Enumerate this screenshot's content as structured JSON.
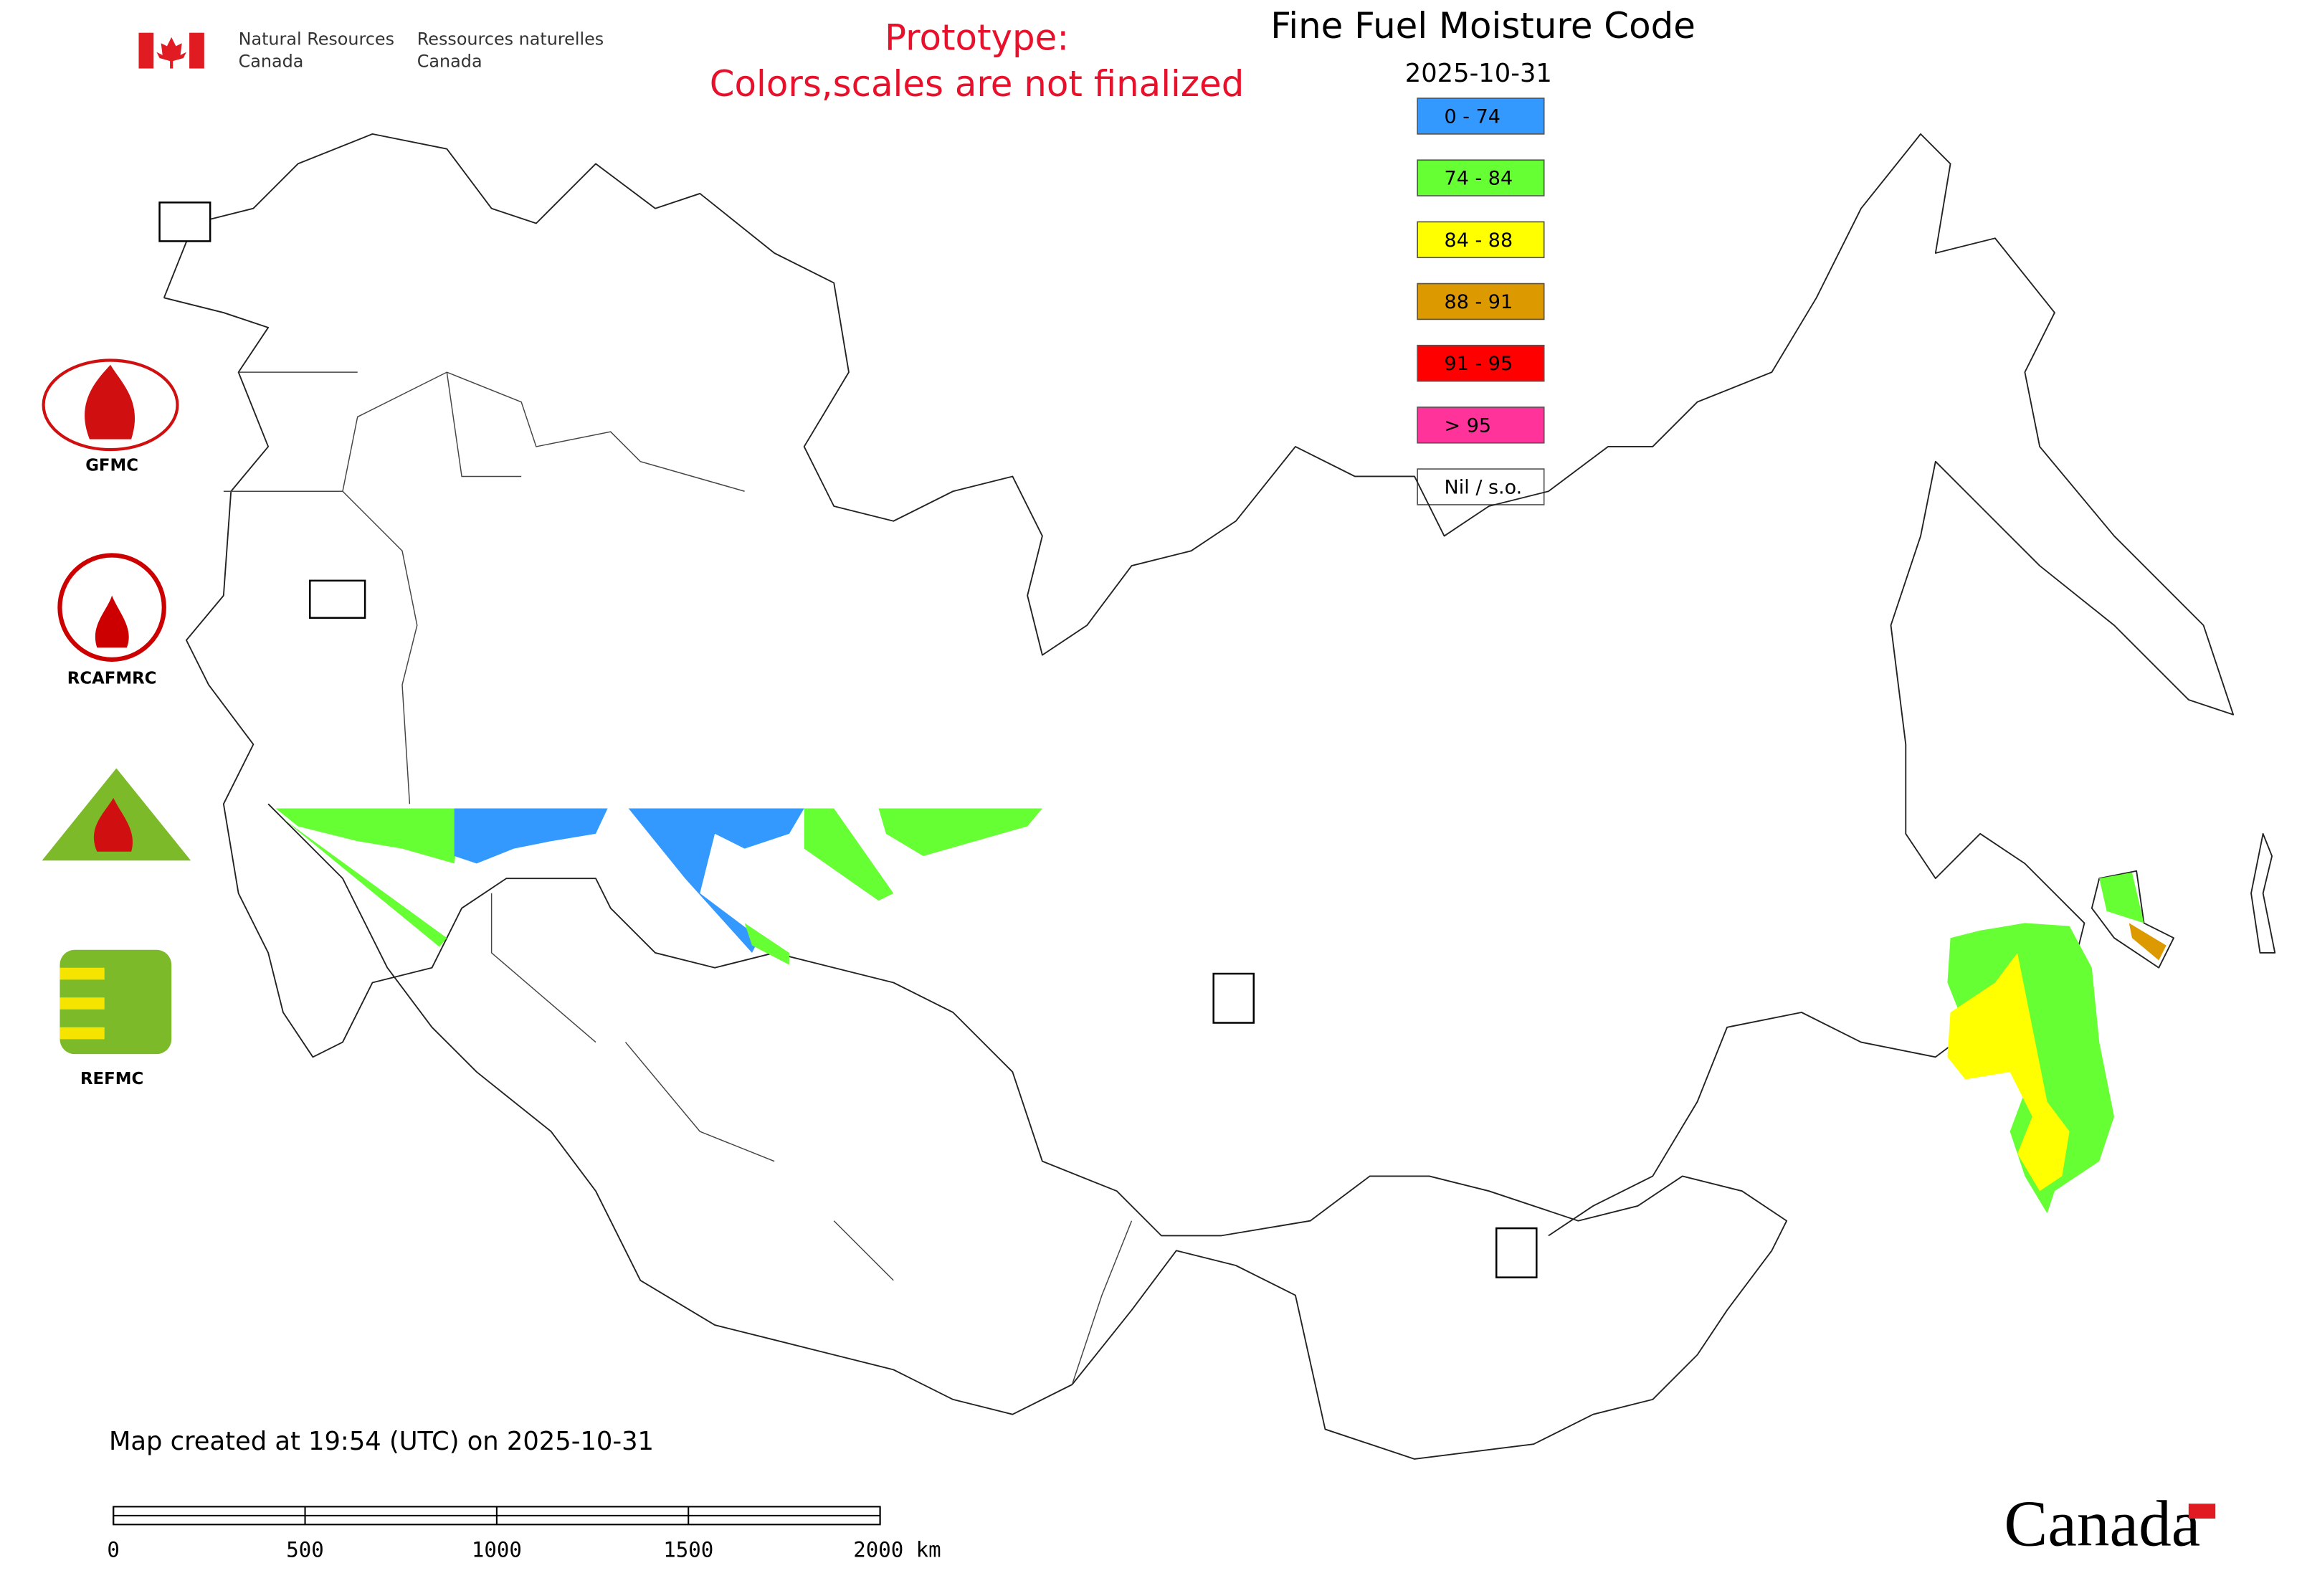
{
  "header": {
    "agency_en": [
      "Natural Resources",
      "Canada"
    ],
    "agency_fr": [
      "Ressources naturelles",
      "Canada"
    ],
    "notice": [
      "Prototype:",
      "Colors,scales are not finalized"
    ]
  },
  "map": {
    "title": "Fine Fuel Moisture Code",
    "date": "2025-10-31",
    "legend": [
      {
        "label": "0 - 74",
        "color": "#3399ff"
      },
      {
        "label": "74 - 84",
        "color": "#66ff33"
      },
      {
        "label": "84 - 88",
        "color": "#ffff00"
      },
      {
        "label": "88 - 91",
        "color": "#dd9900"
      },
      {
        "label": "91 - 95",
        "color": "#ff0000"
      },
      {
        "label": "> 95",
        "color": "#ff3399"
      },
      {
        "label": "Nil / s.o.",
        "color": "#ffffff"
      }
    ]
  },
  "logos": [
    "GFMC",
    "RCAFMRC",
    "REFMC"
  ],
  "footer": {
    "created": "Map created at 19:54 (UTC) on 2025-10-31",
    "scale_bar": [
      "0",
      "500",
      "1000",
      "1500",
      "2000 km"
    ],
    "wordmark": "Canada"
  }
}
